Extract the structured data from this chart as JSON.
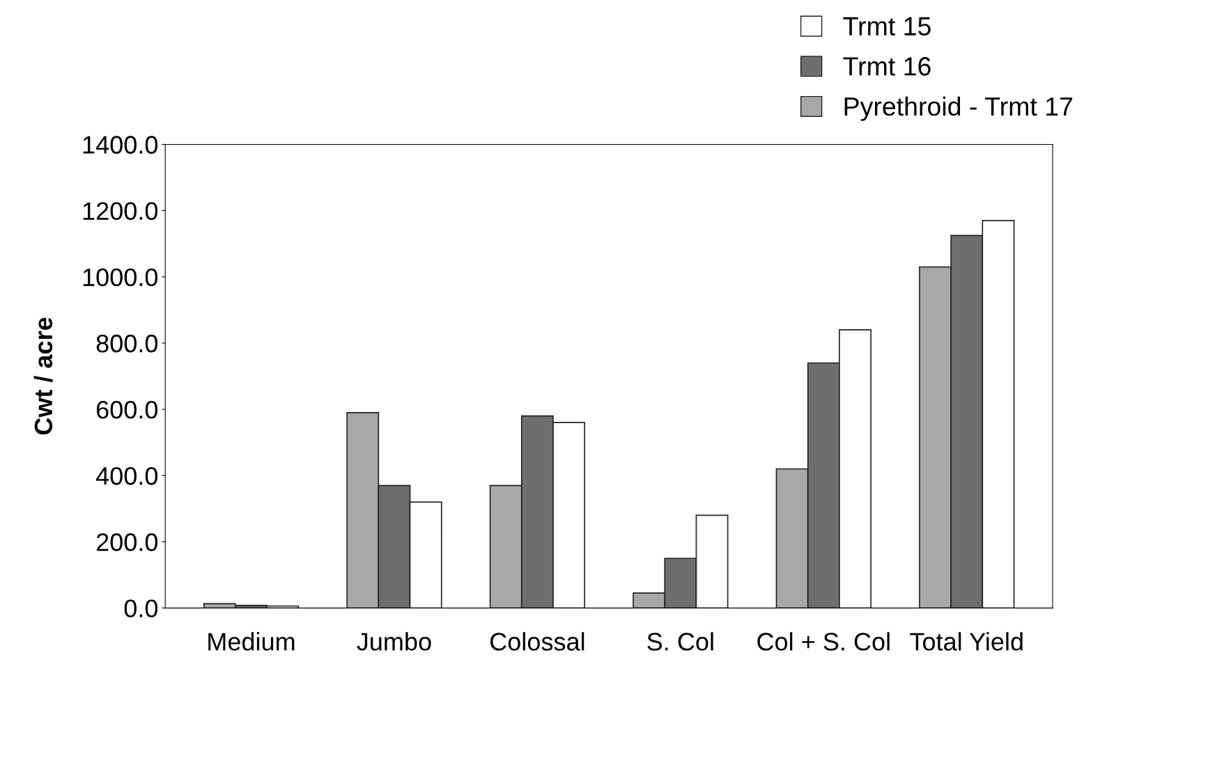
{
  "chart_data": {
    "type": "bar",
    "ylabel": "Cwt / acre",
    "categories": [
      "Medium",
      "Jumbo",
      "Colossal",
      "S. Col",
      "Col + S. Col",
      "Total Yield"
    ],
    "series": [
      {
        "name": "Pyrethroid - Trmt 17",
        "color": "#a8a8a8",
        "values": [
          13,
          590,
          370,
          45,
          420,
          1030
        ]
      },
      {
        "name": "Trmt 16",
        "color": "#6e6e6e",
        "values": [
          8,
          370,
          580,
          150,
          740,
          1125
        ]
      },
      {
        "name": "Trmt 15",
        "color": "#ffffff",
        "values": [
          6,
          320,
          560,
          280,
          840,
          1170
        ]
      }
    ],
    "ylim": [
      0,
      1400
    ],
    "yticks": [
      {
        "value": 0,
        "label": "0.0"
      },
      {
        "value": 200,
        "label": "200.0"
      },
      {
        "value": 400,
        "label": "400.0"
      },
      {
        "value": 600,
        "label": "600.0"
      },
      {
        "value": 800,
        "label": "800.0"
      },
      {
        "value": 1000,
        "label": "1000.0"
      },
      {
        "value": 1200,
        "label": "1200.0"
      },
      {
        "value": 1400,
        "label": "1400.0"
      }
    ],
    "grid": false,
    "legend": "top right"
  }
}
